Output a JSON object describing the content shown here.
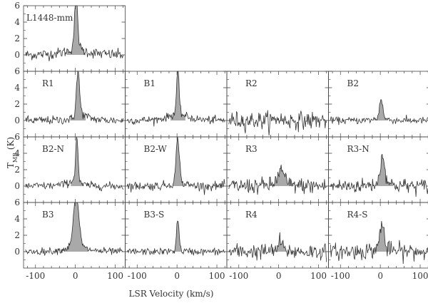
{
  "chart_data": {
    "type": "line",
    "xlabel": "LSR Velocity (km/s)",
    "ylabel_main": "T",
    "ylabel_sub": "MB",
    "ylabel_unit": " (K)",
    "xlim": [
      -130,
      125
    ],
    "ylim": [
      -2,
      6
    ],
    "xticks": [
      -100,
      0,
      100
    ],
    "yticks": [
      0,
      2,
      4,
      6
    ],
    "panels": [
      {
        "label": "L1448-mm",
        "peak": 6.0,
        "peak_v": 2,
        "width": 4,
        "wing": 1.0,
        "wing_width": 30,
        "noise": 0.55
      },
      {
        "label": "R1",
        "peak": 5.0,
        "peak_v": 6,
        "width": 4,
        "wing": 1.5,
        "wing_width": 20,
        "noise": 0.45,
        "wing_side": "red"
      },
      {
        "label": "B1",
        "peak": 5.0,
        "peak_v": 2,
        "width": 3,
        "wing": 1.2,
        "wing_width": 25,
        "noise": 0.4
      },
      {
        "label": "R2",
        "peak": 0.3,
        "peak_v": 0,
        "width": 5,
        "wing": 0.0,
        "wing_width": 10,
        "noise": 0.9
      },
      {
        "label": "B2",
        "peak": 2.3,
        "peak_v": 2,
        "width": 4,
        "wing": 0.4,
        "wing_width": 15,
        "noise": 0.35
      },
      {
        "label": "B2-N",
        "peak": 5.5,
        "peak_v": 4,
        "width": 3,
        "wing": 1.2,
        "wing_width": 20,
        "noise": 0.4,
        "wing_side": "blue"
      },
      {
        "label": "B2-W",
        "peak": 5.2,
        "peak_v": 2,
        "width": 4,
        "wing": 0.8,
        "wing_width": 15,
        "noise": 0.45
      },
      {
        "label": "R3",
        "peak": 1.5,
        "peak_v": 6,
        "width": 8,
        "wing": 0.5,
        "wing_width": 20,
        "noise": 0.8
      },
      {
        "label": "R3-N",
        "peak": 3.0,
        "peak_v": 6,
        "width": 6,
        "wing": 0.6,
        "wing_width": 20,
        "noise": 0.75
      },
      {
        "label": "B3",
        "peak": 5.7,
        "peak_v": 2,
        "width": 7,
        "wing": 1.0,
        "wing_width": 25,
        "noise": 0.35
      },
      {
        "label": "B3-S",
        "peak": 3.8,
        "peak_v": 2,
        "width": 3,
        "wing": 0.3,
        "wing_width": 10,
        "noise": 0.35
      },
      {
        "label": "R4",
        "peak": 1.0,
        "peak_v": 4,
        "width": 5,
        "wing": 0.3,
        "wing_width": 15,
        "noise": 0.8
      },
      {
        "label": "R4-S",
        "peak": 3.0,
        "peak_v": 4,
        "width": 5,
        "wing": 0.6,
        "wing_width": 20,
        "noise": 0.85
      }
    ],
    "colors": {
      "line": "#333333",
      "fill": "#a9a9a9",
      "axis": "#444444",
      "background": "#ffffff"
    }
  }
}
